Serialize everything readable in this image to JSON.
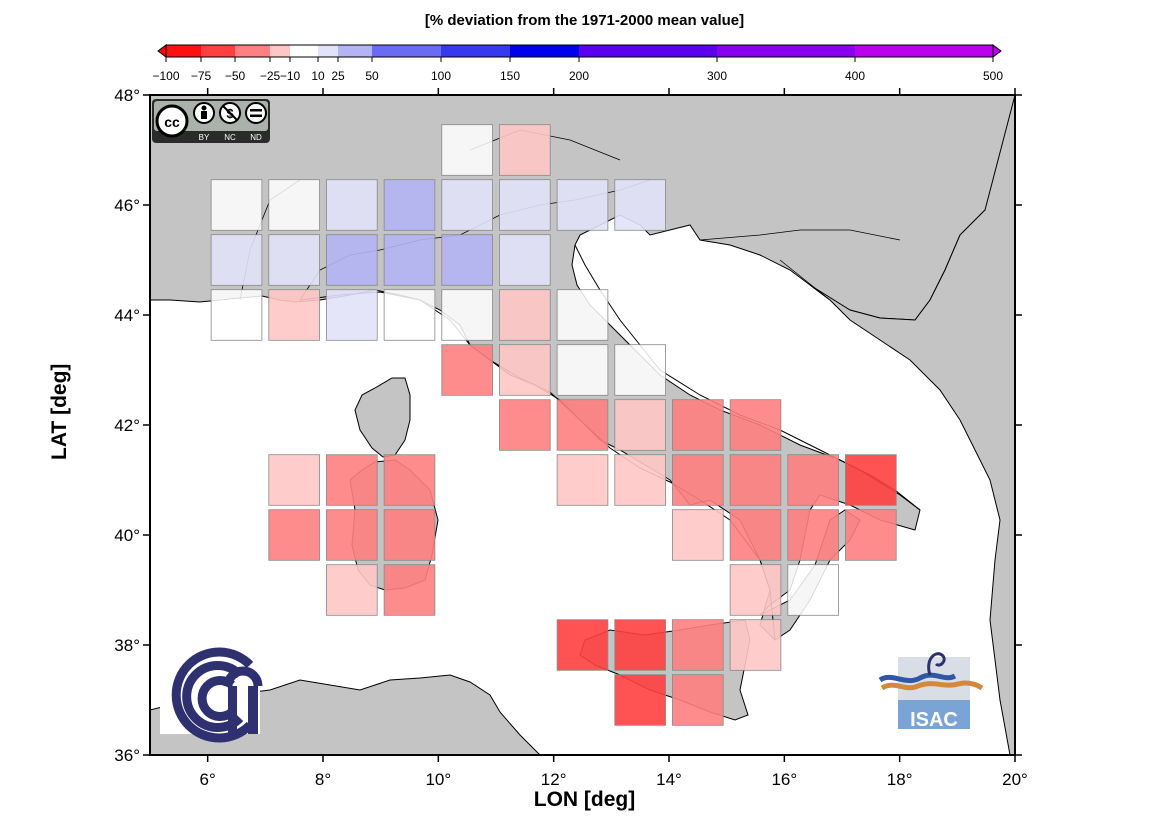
{
  "colorbar": {
    "title": "[% deviation from the 1971-2000 mean value]",
    "ticks": [
      "-100",
      "-75",
      "-50",
      "-25",
      "-10",
      "10",
      "25",
      "50",
      "100",
      "150",
      "200",
      "300",
      "400",
      "500"
    ],
    "bins": [
      {
        "from": -100,
        "to": -75,
        "color": "#ff1010"
      },
      {
        "from": -75,
        "to": -50,
        "color": "#ff4040"
      },
      {
        "from": -50,
        "to": -25,
        "color": "#ff8080"
      },
      {
        "from": -25,
        "to": -10,
        "color": "#ffc6c6"
      },
      {
        "from": -10,
        "to": 10,
        "color": "#ffffff"
      },
      {
        "from": 10,
        "to": 25,
        "color": "#e2e2fa"
      },
      {
        "from": 25,
        "to": 50,
        "color": "#b4b4f5"
      },
      {
        "from": 50,
        "to": 100,
        "color": "#6a6af2"
      },
      {
        "from": 100,
        "to": 150,
        "color": "#3838ee"
      },
      {
        "from": 150,
        "to": 200,
        "color": "#0000ee"
      },
      {
        "from": 200,
        "to": 300,
        "color": "#5a00ee"
      },
      {
        "from": 300,
        "to": 400,
        "color": "#8800ee"
      },
      {
        "from": 400,
        "to": 500,
        "color": "#bb00ee"
      }
    ]
  },
  "map": {
    "xlabel": "LON [deg]",
    "ylabel": "LAT [deg]",
    "lon_range": [
      5,
      20
    ],
    "lat_range": [
      36,
      48
    ],
    "lon_ticks": [
      "6°",
      "8°",
      "10°",
      "12°",
      "14°",
      "16°",
      "18°",
      "20°"
    ],
    "lat_ticks": [
      "36°",
      "38°",
      "40°",
      "42°",
      "44°",
      "46°",
      "48°"
    ],
    "cells": [
      {
        "lon": 10.5,
        "lat": 47.0,
        "color": "#ffffff"
      },
      {
        "lon": 11.5,
        "lat": 47.0,
        "color": "#ffc6c6"
      },
      {
        "lon": 6.5,
        "lat": 46.0,
        "color": "#ffffff"
      },
      {
        "lon": 7.5,
        "lat": 46.0,
        "color": "#ffffff"
      },
      {
        "lon": 8.5,
        "lat": 46.0,
        "color": "#e2e2fa"
      },
      {
        "lon": 9.5,
        "lat": 46.0,
        "color": "#b4b4f5"
      },
      {
        "lon": 10.5,
        "lat": 46.0,
        "color": "#e2e2fa"
      },
      {
        "lon": 11.5,
        "lat": 46.0,
        "color": "#e2e2fa"
      },
      {
        "lon": 12.5,
        "lat": 46.0,
        "color": "#e2e2fa"
      },
      {
        "lon": 13.5,
        "lat": 46.0,
        "color": "#e2e2fa"
      },
      {
        "lon": 6.5,
        "lat": 45.0,
        "color": "#e2e2fa"
      },
      {
        "lon": 7.5,
        "lat": 45.0,
        "color": "#e2e2fa"
      },
      {
        "lon": 8.5,
        "lat": 45.0,
        "color": "#b4b4f5"
      },
      {
        "lon": 9.5,
        "lat": 45.0,
        "color": "#b4b4f5"
      },
      {
        "lon": 10.5,
        "lat": 45.0,
        "color": "#b4b4f5"
      },
      {
        "lon": 11.5,
        "lat": 45.0,
        "color": "#e2e2fa"
      },
      {
        "lon": 6.5,
        "lat": 44.0,
        "color": "#ffffff"
      },
      {
        "lon": 7.5,
        "lat": 44.0,
        "color": "#ffc6c6"
      },
      {
        "lon": 8.5,
        "lat": 44.0,
        "color": "#e2e2fa"
      },
      {
        "lon": 9.5,
        "lat": 44.0,
        "color": "#ffffff"
      },
      {
        "lon": 10.5,
        "lat": 44.0,
        "color": "#ffffff"
      },
      {
        "lon": 11.5,
        "lat": 44.0,
        "color": "#ffc6c6"
      },
      {
        "lon": 12.5,
        "lat": 44.0,
        "color": "#ffffff"
      },
      {
        "lon": 10.5,
        "lat": 43.0,
        "color": "#ff8080"
      },
      {
        "lon": 11.5,
        "lat": 43.0,
        "color": "#ffc6c6"
      },
      {
        "lon": 12.5,
        "lat": 43.0,
        "color": "#ffffff"
      },
      {
        "lon": 13.5,
        "lat": 43.0,
        "color": "#ffffff"
      },
      {
        "lon": 11.5,
        "lat": 42.0,
        "color": "#ff8080"
      },
      {
        "lon": 12.5,
        "lat": 42.0,
        "color": "#ff8080"
      },
      {
        "lon": 13.5,
        "lat": 42.0,
        "color": "#ffc6c6"
      },
      {
        "lon": 14.5,
        "lat": 42.0,
        "color": "#ff8080"
      },
      {
        "lon": 15.5,
        "lat": 42.0,
        "color": "#ff8080"
      },
      {
        "lon": 7.5,
        "lat": 41.0,
        "color": "#ffc6c6"
      },
      {
        "lon": 8.5,
        "lat": 41.0,
        "color": "#ff8080"
      },
      {
        "lon": 9.5,
        "lat": 41.0,
        "color": "#ff8080"
      },
      {
        "lon": 12.5,
        "lat": 41.0,
        "color": "#ffc6c6"
      },
      {
        "lon": 13.5,
        "lat": 41.0,
        "color": "#ffc6c6"
      },
      {
        "lon": 14.5,
        "lat": 41.0,
        "color": "#ff8080"
      },
      {
        "lon": 15.5,
        "lat": 41.0,
        "color": "#ff8080"
      },
      {
        "lon": 16.5,
        "lat": 41.0,
        "color": "#ff8080"
      },
      {
        "lon": 17.5,
        "lat": 41.0,
        "color": "#ff4040"
      },
      {
        "lon": 7.5,
        "lat": 40.0,
        "color": "#ff8080"
      },
      {
        "lon": 8.5,
        "lat": 40.0,
        "color": "#ff8080"
      },
      {
        "lon": 9.5,
        "lat": 40.0,
        "color": "#ff8080"
      },
      {
        "lon": 14.5,
        "lat": 40.0,
        "color": "#ffc6c6"
      },
      {
        "lon": 15.5,
        "lat": 40.0,
        "color": "#ff8080"
      },
      {
        "lon": 16.5,
        "lat": 40.0,
        "color": "#ff8080"
      },
      {
        "lon": 17.5,
        "lat": 40.0,
        "color": "#ff8080"
      },
      {
        "lon": 8.5,
        "lat": 39.0,
        "color": "#ffc6c6"
      },
      {
        "lon": 9.5,
        "lat": 39.0,
        "color": "#ff8080"
      },
      {
        "lon": 15.5,
        "lat": 39.0,
        "color": "#ffc6c6"
      },
      {
        "lon": 16.5,
        "lat": 39.0,
        "color": "#ffffff"
      },
      {
        "lon": 12.5,
        "lat": 38.0,
        "color": "#ff4040"
      },
      {
        "lon": 13.5,
        "lat": 38.0,
        "color": "#ff4040"
      },
      {
        "lon": 14.5,
        "lat": 38.0,
        "color": "#ff8080"
      },
      {
        "lon": 15.5,
        "lat": 38.0,
        "color": "#ffc6c6"
      },
      {
        "lon": 13.5,
        "lat": 37.0,
        "color": "#ff4040"
      },
      {
        "lon": 14.5,
        "lat": 37.0,
        "color": "#ff8080"
      }
    ]
  },
  "badges": {
    "cc": "cc",
    "cc_terms": [
      "BY",
      "NC",
      "ND"
    ],
    "isac": "ISAC"
  }
}
